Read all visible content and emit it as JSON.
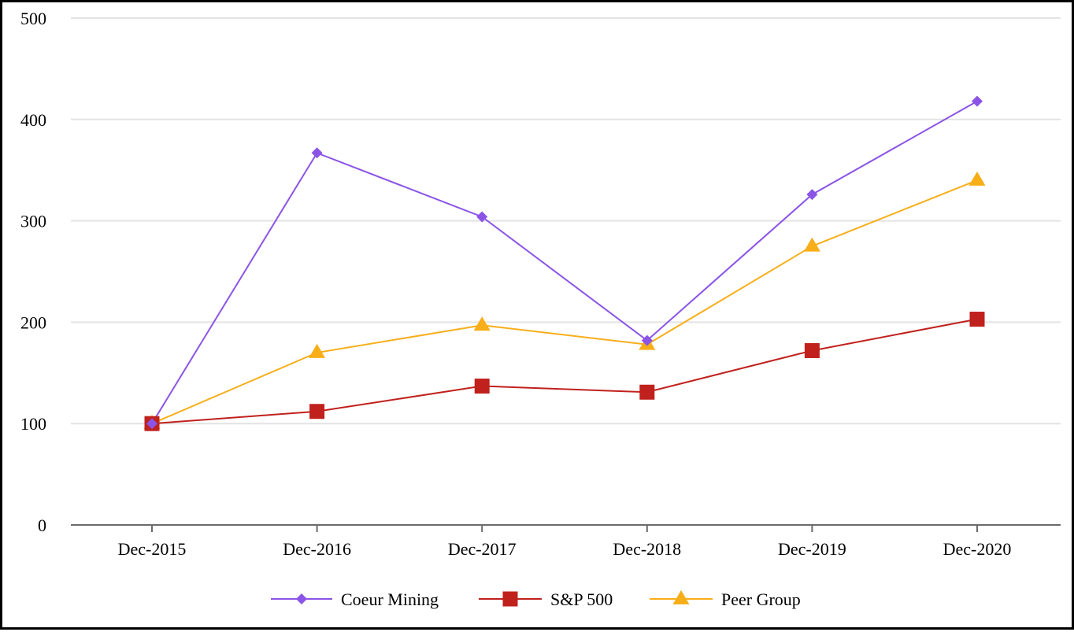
{
  "chart_data": {
    "type": "line",
    "title": "",
    "xlabel": "",
    "ylabel": "",
    "categories": [
      "Dec-2015",
      "Dec-2016",
      "Dec-2017",
      "Dec-2018",
      "Dec-2019",
      "Dec-2020"
    ],
    "ylim": [
      0,
      500
    ],
    "yticks": [
      0,
      100,
      200,
      300,
      400,
      500
    ],
    "grid": "horizontal",
    "legend_position": "bottom",
    "series": [
      {
        "name": "Coeur Mining",
        "marker": "diamond",
        "color": "#8b54e6",
        "values": [
          100,
          367,
          304,
          182,
          326,
          418
        ]
      },
      {
        "name": "S&P 500",
        "marker": "square",
        "color": "#c0211d",
        "values": [
          100,
          112,
          137,
          131,
          172,
          203
        ]
      },
      {
        "name": "Peer Group",
        "marker": "triangle",
        "color": "#f7ae19",
        "values": [
          100,
          170,
          197,
          178,
          275,
          340
        ]
      }
    ]
  }
}
